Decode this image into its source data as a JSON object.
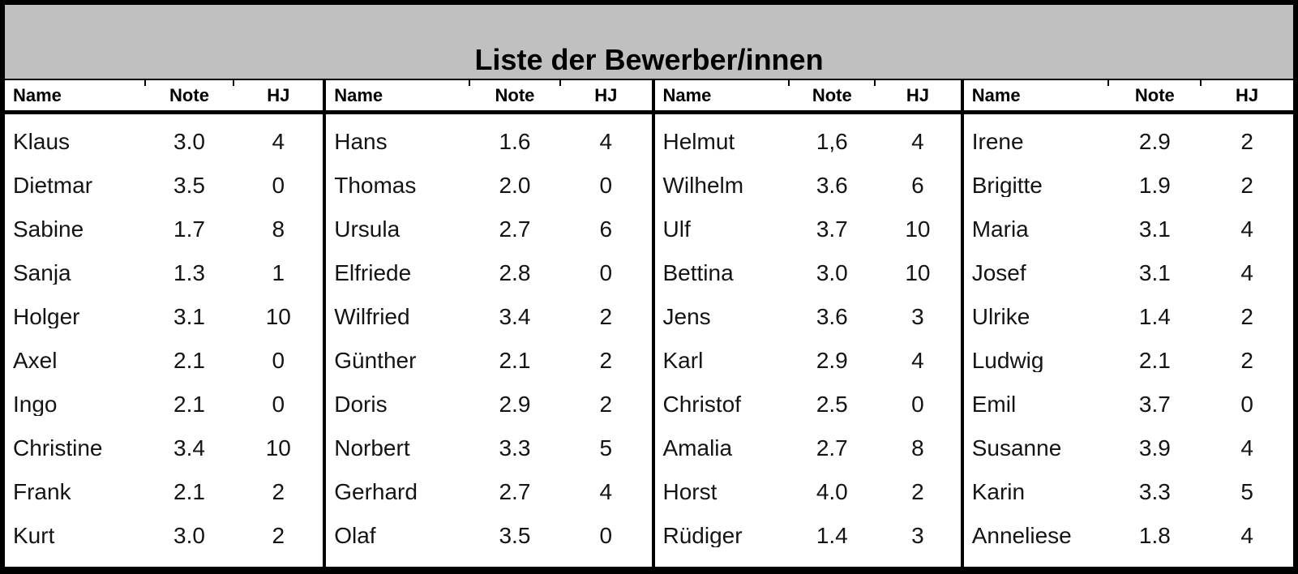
{
  "title": "Liste der Bewerber/innen",
  "columns": [
    "Name",
    "Note",
    "HJ"
  ],
  "colors": {
    "title_bg": "#c0c0c0",
    "border": "#000000",
    "background": "#ffffff",
    "text": "#141414"
  },
  "groups": [
    {
      "rows": [
        {
          "name": "Klaus",
          "note": "3.0",
          "hj": "4"
        },
        {
          "name": "Dietmar",
          "note": "3.5",
          "hj": "0"
        },
        {
          "name": "Sabine",
          "note": "1.7",
          "hj": "8"
        },
        {
          "name": "Sanja",
          "note": "1.3",
          "hj": "1"
        },
        {
          "name": "Holger",
          "note": "3.1",
          "hj": "10"
        },
        {
          "name": "Axel",
          "note": "2.1",
          "hj": "0"
        },
        {
          "name": "Ingo",
          "note": "2.1",
          "hj": "0"
        },
        {
          "name": "Christine",
          "note": "3.4",
          "hj": "10"
        },
        {
          "name": "Frank",
          "note": "2.1",
          "hj": "2"
        },
        {
          "name": "Kurt",
          "note": "3.0",
          "hj": "2"
        }
      ]
    },
    {
      "rows": [
        {
          "name": "Hans",
          "note": "1.6",
          "hj": "4"
        },
        {
          "name": "Thomas",
          "note": "2.0",
          "hj": "0"
        },
        {
          "name": "Ursula",
          "note": "2.7",
          "hj": "6"
        },
        {
          "name": "Elfriede",
          "note": "2.8",
          "hj": "0"
        },
        {
          "name": "Wilfried",
          "note": "3.4",
          "hj": "2"
        },
        {
          "name": "Günther",
          "note": "2.1",
          "hj": "2"
        },
        {
          "name": "Doris",
          "note": "2.9",
          "hj": "2"
        },
        {
          "name": "Norbert",
          "note": "3.3",
          "hj": "5"
        },
        {
          "name": "Gerhard",
          "note": "2.7",
          "hj": "4"
        },
        {
          "name": "Olaf",
          "note": "3.5",
          "hj": "0"
        }
      ]
    },
    {
      "rows": [
        {
          "name": "Helmut",
          "note": "1,6",
          "hj": "4"
        },
        {
          "name": "Wilhelm",
          "note": "3.6",
          "hj": "6"
        },
        {
          "name": "Ulf",
          "note": "3.7",
          "hj": "10"
        },
        {
          "name": "Bettina",
          "note": "3.0",
          "hj": "10"
        },
        {
          "name": "Jens",
          "note": "3.6",
          "hj": "3"
        },
        {
          "name": "Karl",
          "note": "2.9",
          "hj": "4"
        },
        {
          "name": "Christof",
          "note": "2.5",
          "hj": "0"
        },
        {
          "name": "Amalia",
          "note": "2.7",
          "hj": "8"
        },
        {
          "name": "Horst",
          "note": "4.0",
          "hj": "2"
        },
        {
          "name": "Rüdiger",
          "note": "1.4",
          "hj": "3"
        }
      ]
    },
    {
      "rows": [
        {
          "name": "Irene",
          "note": "2.9",
          "hj": "2"
        },
        {
          "name": "Brigitte",
          "note": "1.9",
          "hj": "2"
        },
        {
          "name": "Maria",
          "note": "3.1",
          "hj": "4"
        },
        {
          "name": "Josef",
          "note": "3.1",
          "hj": "4"
        },
        {
          "name": "Ulrike",
          "note": "1.4",
          "hj": "2"
        },
        {
          "name": "Ludwig",
          "note": "2.1",
          "hj": "2"
        },
        {
          "name": "Emil",
          "note": "3.7",
          "hj": "0"
        },
        {
          "name": "Susanne",
          "note": "3.9",
          "hj": "4"
        },
        {
          "name": "Karin",
          "note": "3.3",
          "hj": "5"
        },
        {
          "name": "Anneliese",
          "note": "1.8",
          "hj": "4"
        }
      ]
    }
  ]
}
